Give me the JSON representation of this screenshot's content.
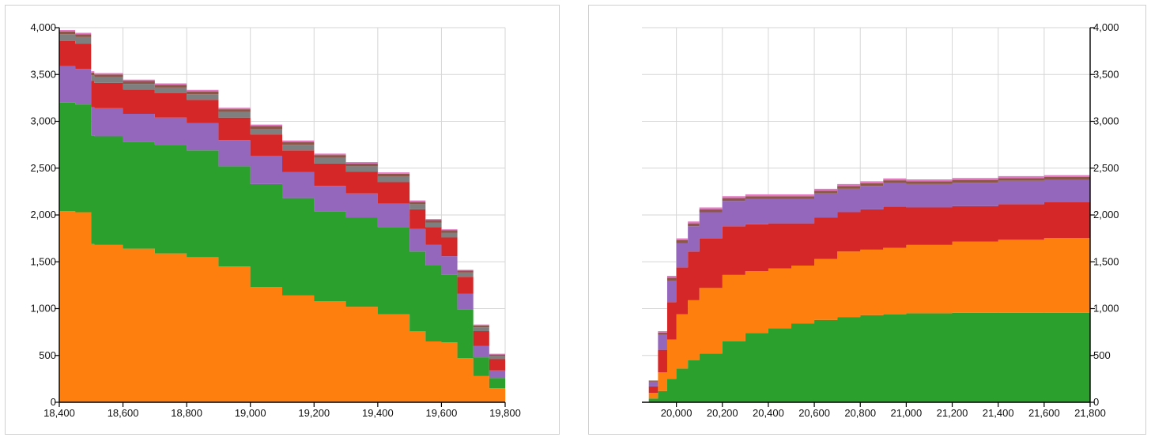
{
  "chart_data": [
    {
      "type": "area",
      "title": "",
      "xlabel": "",
      "ylabel": "",
      "xlim": [
        18400,
        19800
      ],
      "ylim": [
        0,
        4000
      ],
      "grid": true,
      "y_axis_side": "left",
      "x_ticks": [
        "18,400",
        "18,600",
        "18,800",
        "19,000",
        "19,200",
        "19,400",
        "19,600",
        "19,800"
      ],
      "y_ticks": [
        "0",
        "500",
        "1,000",
        "1,500",
        "2,000",
        "2,500",
        "3,000",
        "3,500",
        "4,000"
      ],
      "x": [
        18400,
        18450,
        18500,
        18510,
        18600,
        18700,
        18800,
        18900,
        19000,
        19100,
        19200,
        19300,
        19400,
        19500,
        19550,
        19600,
        19650,
        19700,
        19750,
        19800
      ],
      "series": [
        {
          "color": "#ff7f0e",
          "values": [
            2040,
            2030,
            1690,
            1680,
            1640,
            1590,
            1550,
            1450,
            1230,
            1140,
            1080,
            1020,
            940,
            760,
            650,
            640,
            470,
            280,
            150,
            20
          ]
        },
        {
          "color": "#2ca02c",
          "values": [
            1160,
            1150,
            1160,
            1160,
            1140,
            1160,
            1140,
            1070,
            1100,
            1040,
            960,
            950,
            930,
            850,
            810,
            720,
            520,
            200,
            110,
            15
          ]
        },
        {
          "color": "#9467bd",
          "values": [
            390,
            380,
            300,
            300,
            300,
            290,
            290,
            280,
            300,
            280,
            270,
            260,
            250,
            240,
            220,
            200,
            170,
            120,
            80,
            10
          ]
        },
        {
          "color": "#d62728",
          "values": [
            270,
            270,
            280,
            270,
            260,
            260,
            250,
            240,
            230,
            230,
            240,
            230,
            230,
            210,
            190,
            200,
            180,
            160,
            120,
            15
          ]
        },
        {
          "color": "#7f7f7f",
          "values": [
            70,
            70,
            60,
            60,
            60,
            60,
            60,
            60,
            60,
            60,
            60,
            60,
            60,
            55,
            50,
            50,
            45,
            40,
            35,
            5
          ]
        },
        {
          "color": "#8c564b",
          "values": [
            30,
            30,
            30,
            30,
            30,
            30,
            30,
            30,
            30,
            30,
            30,
            30,
            30,
            25,
            25,
            25,
            20,
            20,
            15,
            3
          ]
        },
        {
          "color": "#e377c2",
          "values": [
            15,
            15,
            15,
            15,
            15,
            15,
            15,
            15,
            15,
            15,
            15,
            15,
            15,
            15,
            12,
            12,
            10,
            10,
            8,
            2
          ]
        }
      ]
    },
    {
      "type": "area",
      "title": "",
      "xlabel": "",
      "ylabel": "",
      "xlim": [
        19850,
        21800
      ],
      "ylim": [
        0,
        4000
      ],
      "grid": true,
      "y_axis_side": "right",
      "x_ticks": [
        "20,000",
        "20,200",
        "20,400",
        "20,600",
        "20,800",
        "21,000",
        "21,200",
        "21,400",
        "21,600",
        "21,800"
      ],
      "y_ticks": [
        "0",
        "500",
        "1,000",
        "1,500",
        "2,000",
        "2,500",
        "3,000",
        "3,500",
        "4,000"
      ],
      "x": [
        19850,
        19880,
        19920,
        19960,
        20000,
        20050,
        20100,
        20200,
        20300,
        20400,
        20500,
        20600,
        20700,
        20800,
        20900,
        21000,
        21200,
        21400,
        21600,
        21800
      ],
      "series": [
        {
          "color": "#2ca02c",
          "values": [
            0,
            40,
            120,
            250,
            360,
            450,
            520,
            650,
            740,
            790,
            840,
            880,
            910,
            930,
            940,
            950,
            955,
            955,
            955,
            958
          ]
        },
        {
          "color": "#ff7f0e",
          "values": [
            0,
            60,
            200,
            420,
            580,
            640,
            700,
            710,
            660,
            640,
            620,
            650,
            700,
            700,
            710,
            730,
            760,
            780,
            800,
            820
          ]
        },
        {
          "color": "#d62728",
          "values": [
            0,
            70,
            240,
            400,
            500,
            520,
            530,
            520,
            500,
            480,
            450,
            440,
            420,
            430,
            440,
            400,
            380,
            380,
            380,
            380
          ]
        },
        {
          "color": "#9467bd",
          "values": [
            0,
            50,
            160,
            230,
            260,
            270,
            280,
            270,
            270,
            260,
            260,
            260,
            250,
            250,
            250,
            250,
            250,
            250,
            240,
            240
          ]
        },
        {
          "color": "#8c564b",
          "values": [
            0,
            10,
            25,
            30,
            30,
            30,
            30,
            30,
            30,
            30,
            30,
            30,
            30,
            30,
            30,
            30,
            30,
            30,
            30,
            30
          ]
        },
        {
          "color": "#e377c2",
          "values": [
            0,
            5,
            15,
            20,
            20,
            20,
            20,
            20,
            20,
            20,
            20,
            20,
            20,
            20,
            20,
            20,
            20,
            20,
            20,
            20
          ]
        }
      ]
    }
  ]
}
